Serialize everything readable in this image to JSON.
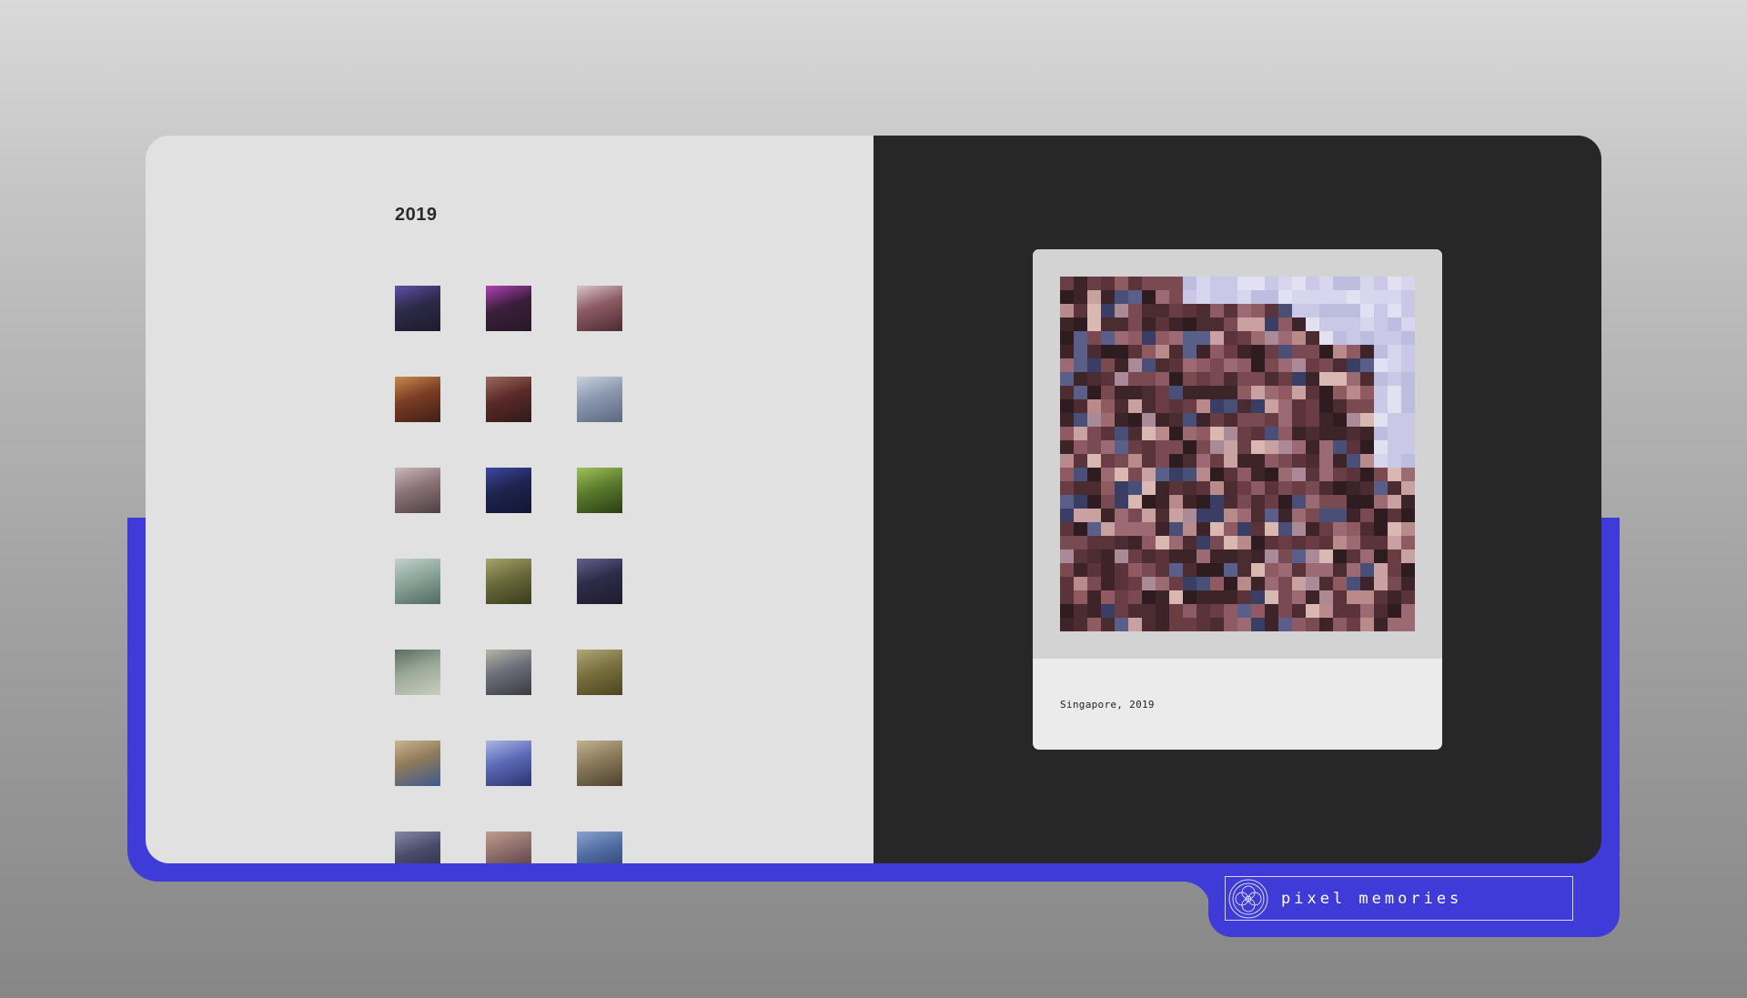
{
  "gallery": {
    "year": "2019",
    "top_row_partial": [
      {
        "name": "thumb-prev-1",
        "c": [
          "#5a3f3a",
          "#7d5c55",
          "#3e2c2a"
        ]
      },
      {
        "name": "thumb-prev-2",
        "c": [
          "#b59a77",
          "#d8c9b4",
          "#8d7a5c"
        ]
      },
      {
        "name": "thumb-prev-3",
        "c": [
          "#8cae3a",
          "#2e3320",
          "#a6c44a"
        ]
      }
    ],
    "rows": [
      [
        {
          "name": "thumb-city-night",
          "c": [
            "#2d2a4a",
            "#5f4fa6",
            "#1d1c2c"
          ]
        },
        {
          "name": "thumb-neon-stage",
          "c": [
            "#3b1f3c",
            "#b23fb3",
            "#261826"
          ]
        },
        {
          "name": "thumb-temple",
          "c": [
            "#8c5a62",
            "#d7c4cf",
            "#4a2c31"
          ]
        }
      ],
      [
        {
          "name": "thumb-lanterns",
          "c": [
            "#7a3d24",
            "#c58a4c",
            "#3e1f14"
          ]
        },
        {
          "name": "thumb-interior-red",
          "c": [
            "#5b2a29",
            "#9c6a5a",
            "#2f1a18"
          ]
        },
        {
          "name": "thumb-building-blue",
          "c": [
            "#8a97ad",
            "#c9d1de",
            "#5b6880"
          ]
        }
      ],
      [
        {
          "name": "thumb-towers",
          "c": [
            "#8a7377",
            "#c9b7bc",
            "#4d3f42"
          ]
        },
        {
          "name": "thumb-blue-dark",
          "c": [
            "#1f2450",
            "#3e46a0",
            "#121530"
          ]
        },
        {
          "name": "thumb-green-spiral",
          "c": [
            "#5c7d2c",
            "#a2c15c",
            "#2c3c16"
          ]
        }
      ],
      [
        {
          "name": "thumb-skyline-water",
          "c": [
            "#8aa59a",
            "#c3d0cb",
            "#4f6a60"
          ]
        },
        {
          "name": "thumb-people-park",
          "c": [
            "#6a6a3c",
            "#a5a46b",
            "#3a3a1e"
          ]
        },
        {
          "name": "thumb-night-plants",
          "c": [
            "#2f2c4a",
            "#60618e",
            "#1c1b2c"
          ]
        }
      ],
      [
        {
          "name": "thumb-person-walk",
          "c": [
            "#9aa898",
            "#5a6b60",
            "#c9cdbf"
          ]
        },
        {
          "name": "thumb-pool-building",
          "c": [
            "#6c6f78",
            "#b8b2a8",
            "#3a3b40"
          ]
        },
        {
          "name": "thumb-tree-building",
          "c": [
            "#7a7040",
            "#b0a87a",
            "#4c4520"
          ]
        }
      ],
      [
        {
          "name": "thumb-ice-cream",
          "c": [
            "#8e7a5a",
            "#c9b48c",
            "#3d5a8f"
          ]
        },
        {
          "name": "thumb-glass-tower",
          "c": [
            "#5b6ab5",
            "#a9b6e6",
            "#2c3470"
          ]
        },
        {
          "name": "thumb-skyline-dusk",
          "c": [
            "#8a7a5a",
            "#c4b390",
            "#4c4230"
          ]
        }
      ],
      [
        {
          "name": "thumb-partial-1",
          "c": [
            "#4a4a6a",
            "#8787a6",
            "#2c2c40"
          ]
        },
        {
          "name": "thumb-partial-2",
          "c": [
            "#8a6a6a",
            "#c19c8c",
            "#4a3434"
          ]
        },
        {
          "name": "thumb-partial-3",
          "c": [
            "#4e6aa0",
            "#8aa2cc",
            "#2c3a60"
          ]
        }
      ]
    ]
  },
  "preview": {
    "caption": "Singapore, 2019",
    "selected": "thumb-temple"
  },
  "brand": {
    "name": "pixel memories",
    "logo_icon": "flower-ring-icon"
  },
  "colors": {
    "accent": "#3f3bd8",
    "left_panel": "#e1e1e1",
    "right_panel": "#272727"
  }
}
